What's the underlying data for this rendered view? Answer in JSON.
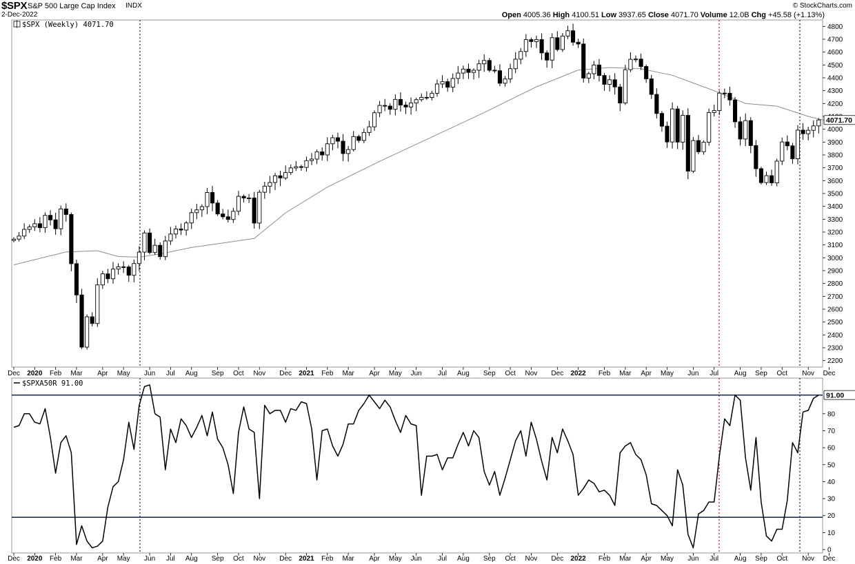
{
  "header": {
    "symbol": "$SPX",
    "name": "S&P 500 Large Cap Index",
    "exchange": "INDX",
    "date": "2-Dec-2022",
    "watermark": "© StockCharts.com",
    "quote": {
      "open_label": "Open",
      "open": "4005.36",
      "high_label": "High",
      "high": "4100.51",
      "low_label": "Low",
      "low": "3937.65",
      "close_label": "Close",
      "close": "4071.70",
      "volume_label": "Volume",
      "volume": "12.0B",
      "chg_label": "Chg",
      "chg": "+45.58 (+1.13%)"
    }
  },
  "chart_data": [
    {
      "type": "candlestick",
      "legend": "$SPX (Weekly) 4071.70",
      "last_value_label": "4071.70",
      "ylim": [
        2150,
        4850
      ],
      "y_ticks": [
        2200,
        2300,
        2400,
        2500,
        2600,
        2700,
        2800,
        2900,
        3000,
        3100,
        3200,
        3300,
        3400,
        3500,
        3600,
        3700,
        3800,
        3900,
        4000,
        4100,
        4200,
        4300,
        4400,
        4500,
        4600,
        4700,
        4800
      ],
      "y_ticks_display": [
        "2200",
        "2300",
        "2400",
        "2500",
        "2600",
        "2700",
        "2800",
        "2900",
        "3000",
        "3100",
        "3200",
        "3300",
        "3400",
        "3500",
        "3600",
        "3700",
        "3800",
        "3900",
        "4000",
        "4100",
        "4200",
        "4300",
        "4400",
        "4500",
        "4600",
        "4700",
        "4800"
      ],
      "x_ticks": [
        {
          "i": 0,
          "label": "Dec",
          "bold": false
        },
        {
          "i": 4,
          "label": "2020",
          "bold": true
        },
        {
          "i": 8,
          "label": "Feb",
          "bold": false
        },
        {
          "i": 12,
          "label": "Mar",
          "bold": false
        },
        {
          "i": 17,
          "label": "Apr",
          "bold": false
        },
        {
          "i": 21,
          "label": "May",
          "bold": false
        },
        {
          "i": 26,
          "label": "Jun",
          "bold": false
        },
        {
          "i": 30,
          "label": "Jul",
          "bold": false
        },
        {
          "i": 34,
          "label": "Aug",
          "bold": false
        },
        {
          "i": 39,
          "label": "Sep",
          "bold": false
        },
        {
          "i": 43,
          "label": "Oct",
          "bold": false
        },
        {
          "i": 47,
          "label": "Nov",
          "bold": false
        },
        {
          "i": 52,
          "label": "Dec",
          "bold": false
        },
        {
          "i": 56,
          "label": "2021",
          "bold": true
        },
        {
          "i": 60,
          "label": "Feb",
          "bold": false
        },
        {
          "i": 64,
          "label": "Mar",
          "bold": false
        },
        {
          "i": 69,
          "label": "Apr",
          "bold": false
        },
        {
          "i": 73,
          "label": "May",
          "bold": false
        },
        {
          "i": 77,
          "label": "Jun",
          "bold": false
        },
        {
          "i": 82,
          "label": "Jul",
          "bold": false
        },
        {
          "i": 86,
          "label": "Aug",
          "bold": false
        },
        {
          "i": 91,
          "label": "Sep",
          "bold": false
        },
        {
          "i": 95,
          "label": "Oct",
          "bold": false
        },
        {
          "i": 99,
          "label": "Nov",
          "bold": false
        },
        {
          "i": 104,
          "label": "Dec",
          "bold": false
        },
        {
          "i": 108,
          "label": "2022",
          "bold": true
        },
        {
          "i": 113,
          "label": "Feb",
          "bold": false
        },
        {
          "i": 117,
          "label": "Mar",
          "bold": false
        },
        {
          "i": 121,
          "label": "Apr",
          "bold": false
        },
        {
          "i": 125,
          "label": "May",
          "bold": false
        },
        {
          "i": 130,
          "label": "Jun",
          "bold": false
        },
        {
          "i": 134,
          "label": "Jul",
          "bold": false
        },
        {
          "i": 139,
          "label": "Aug",
          "bold": false
        },
        {
          "i": 143,
          "label": "Sep",
          "bold": false
        },
        {
          "i": 147,
          "label": "Oct",
          "bold": false
        },
        {
          "i": 152,
          "label": "Nov",
          "bold": false
        },
        {
          "i": 156,
          "label": "Dec",
          "bold": false
        }
      ],
      "closes": [
        3145,
        3169,
        3221,
        3240,
        3265,
        3234,
        3330,
        3295,
        3226,
        3380,
        3337,
        2954,
        2711,
        2305,
        2541,
        2489,
        2789,
        2875,
        2837,
        2912,
        2930,
        2929,
        2864,
        2955,
        3044,
        3193,
        3041,
        3097,
        3009,
        3131,
        3185,
        3224,
        3216,
        3271,
        3351,
        3373,
        3398,
        3508,
        3426,
        3341,
        3319,
        3298,
        3362,
        3478,
        3465,
        3465,
        3270,
        3510,
        3557,
        3586,
        3638,
        3621,
        3663,
        3699,
        3709,
        3703,
        3756,
        3768,
        3824,
        3800,
        3887,
        3934,
        3907,
        3811,
        3842,
        3943,
        3913,
        3975,
        4019,
        4128,
        4185,
        4180,
        4155,
        4232,
        4188,
        4173,
        4204,
        4230,
        4248,
        4247,
        4280,
        4352,
        4370,
        4327,
        4395,
        4437,
        4468,
        4442,
        4459,
        4509,
        4535,
        4459,
        4455,
        4358,
        4391,
        4471,
        4545,
        4605,
        4697,
        4682,
        4698,
        4594,
        4538,
        4712,
        4620,
        4725,
        4766,
        4677,
        4663,
        4398,
        4432,
        4500,
        4418,
        4349,
        4385,
        4329,
        4204,
        4463,
        4544,
        4546,
        4488,
        4392,
        4271,
        4123,
        4024,
        3901,
        4158,
        3900,
        4108,
        3674,
        3912,
        3825,
        3899,
        4130,
        4145,
        4281,
        4280,
        4228,
        4058,
        3924,
        4067,
        3873,
        3693,
        3585,
        3639,
        3583,
        3752,
        3901,
        3871,
        3770,
        3993,
        3965,
        3992,
        4026,
        4072
      ],
      "ma_label": "40-week moving average",
      "ma_approx": [
        {
          "i": 0,
          "v": 2945
        },
        {
          "i": 10,
          "v": 3045
        },
        {
          "i": 16,
          "v": 3055
        },
        {
          "i": 20,
          "v": 3010
        },
        {
          "i": 24,
          "v": 3005
        },
        {
          "i": 28,
          "v": 3030
        },
        {
          "i": 34,
          "v": 3080
        },
        {
          "i": 40,
          "v": 3115
        },
        {
          "i": 46,
          "v": 3150
        },
        {
          "i": 52,
          "v": 3350
        },
        {
          "i": 60,
          "v": 3550
        },
        {
          "i": 70,
          "v": 3750
        },
        {
          "i": 80,
          "v": 3940
        },
        {
          "i": 90,
          "v": 4130
        },
        {
          "i": 100,
          "v": 4330
        },
        {
          "i": 108,
          "v": 4460
        },
        {
          "i": 114,
          "v": 4480
        },
        {
          "i": 120,
          "v": 4470
        },
        {
          "i": 126,
          "v": 4420
        },
        {
          "i": 134,
          "v": 4300
        },
        {
          "i": 140,
          "v": 4200
        },
        {
          "i": 146,
          "v": 4180
        },
        {
          "i": 152,
          "v": 4100
        },
        {
          "i": 157,
          "v": 4050
        }
      ]
    },
    {
      "type": "line",
      "legend": "$SPXA50R 91.00",
      "last_value_label": "91.00",
      "ylim": [
        -2,
        101
      ],
      "y_ticks": [
        0,
        10,
        20,
        30,
        40,
        50,
        60,
        70,
        80
      ],
      "y_ticks_display": [
        "0",
        "10",
        "20",
        "30",
        "40",
        "50",
        "60",
        "70",
        "80"
      ],
      "reference_lines": [
        91,
        19
      ],
      "values": [
        72,
        73,
        80,
        80,
        75,
        74,
        83,
        66,
        45,
        63,
        67,
        57,
        3,
        14,
        5,
        1,
        2,
        5,
        25,
        37,
        40,
        53,
        75,
        59,
        85,
        96,
        97,
        80,
        78,
        47,
        71,
        63,
        77,
        73,
        66,
        72,
        79,
        67,
        81,
        65,
        60,
        50,
        33,
        69,
        84,
        71,
        69,
        30,
        85,
        80,
        82,
        82,
        75,
        83,
        82,
        87,
        86,
        71,
        41,
        70,
        71,
        61,
        55,
        62,
        74,
        74,
        82,
        86,
        91,
        87,
        83,
        88,
        84,
        76,
        69,
        79,
        74,
        73,
        32,
        55,
        55,
        56,
        47,
        54,
        54,
        62,
        69,
        61,
        70,
        66,
        46,
        38,
        46,
        32,
        42,
        53,
        64,
        70,
        55,
        75,
        65,
        52,
        41,
        66,
        57,
        71,
        64,
        56,
        32,
        36,
        41,
        39,
        34,
        35,
        32,
        26,
        57,
        61,
        63,
        56,
        53,
        44,
        27,
        26,
        23,
        20,
        14,
        47,
        38,
        9,
        1,
        21,
        23,
        28,
        28,
        55,
        77,
        73,
        91,
        88,
        54,
        35,
        66,
        28,
        8,
        5,
        12,
        12,
        29,
        63,
        57,
        81,
        82,
        89,
        91
      ],
      "x_ticks_same_as_above": true
    }
  ]
}
